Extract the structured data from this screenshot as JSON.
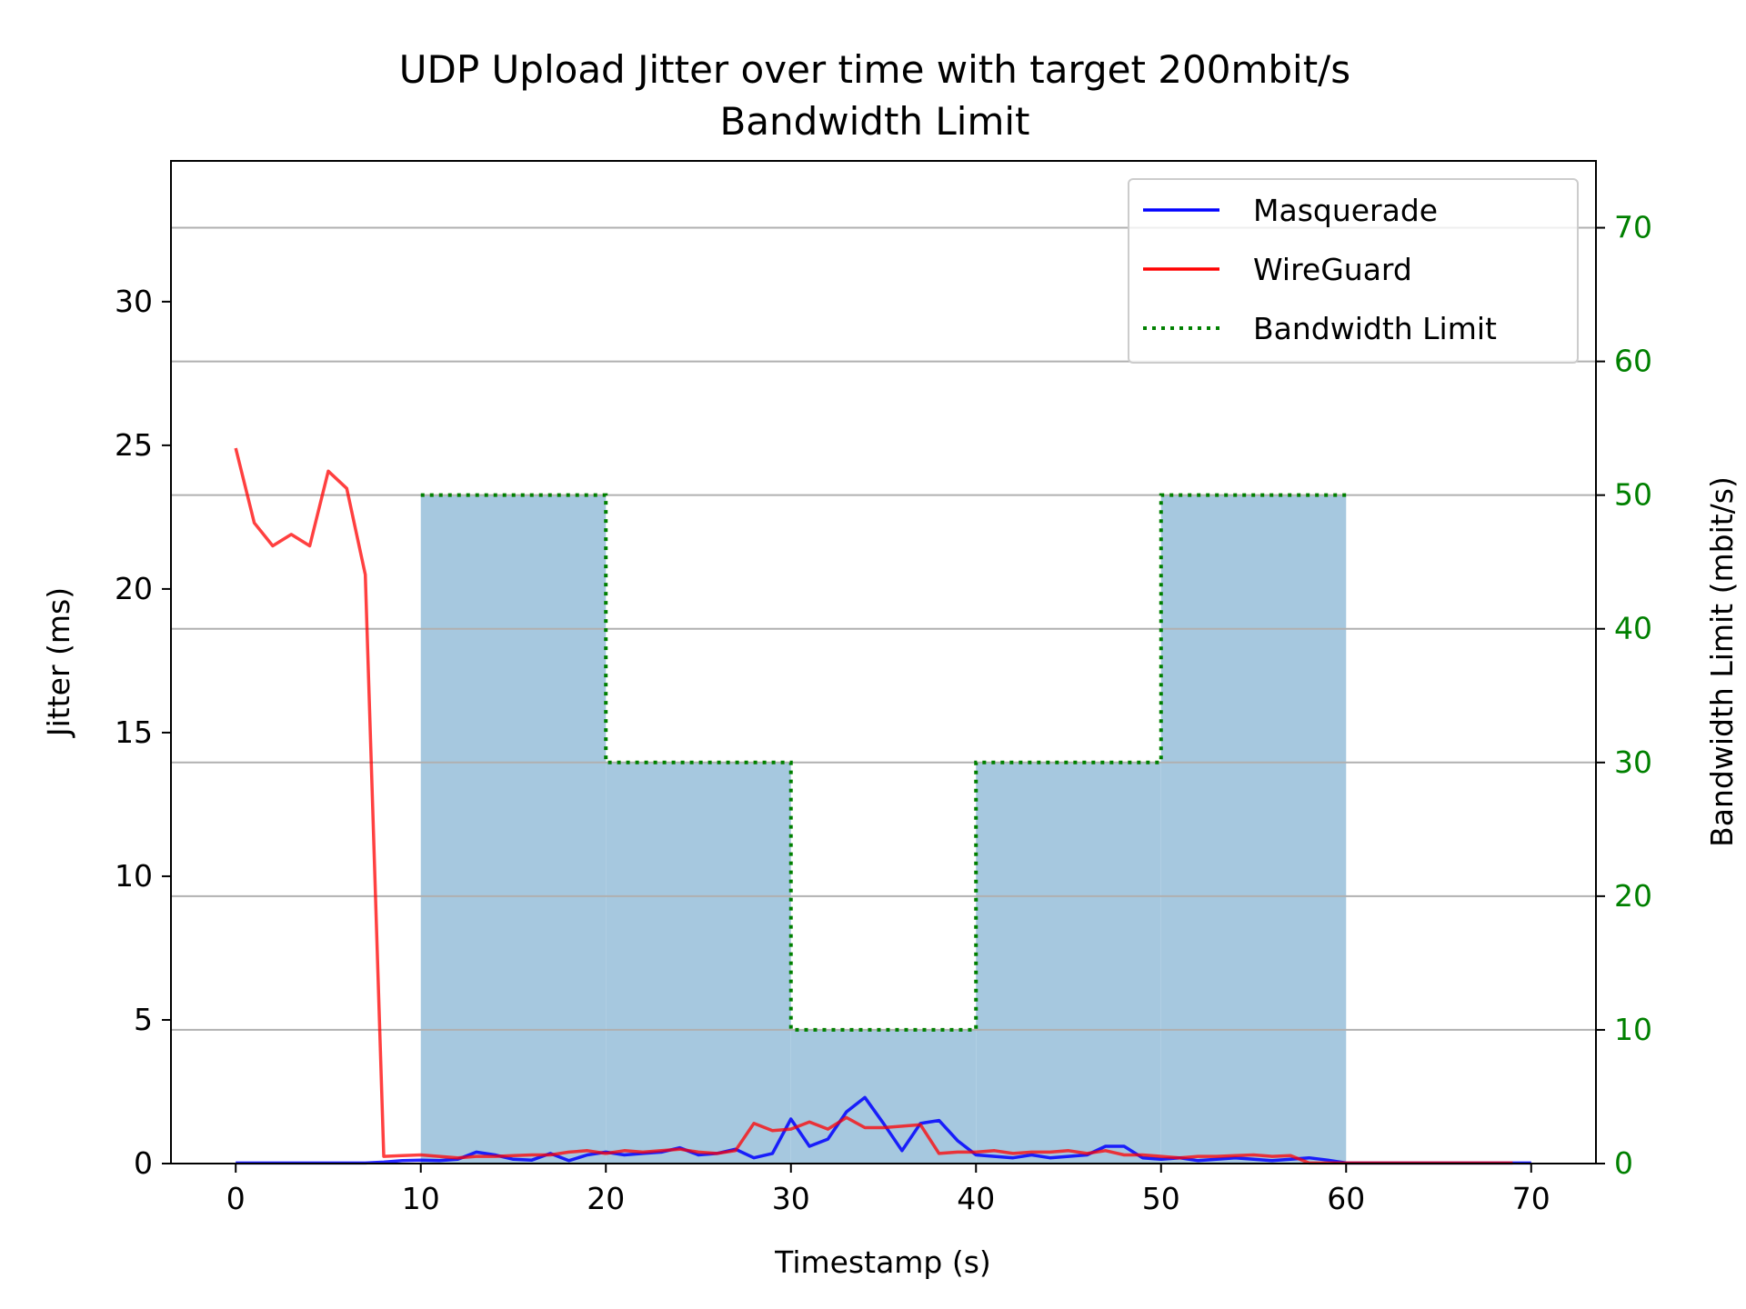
{
  "chart_data": {
    "type": "line",
    "title": "UDP Upload Jitter over time with target 200mbit/s\nBandwidth Limit",
    "title_lines": [
      "UDP Upload Jitter over time with target 200mbit/s",
      "Bandwidth Limit"
    ],
    "xlabel": "Timestamp (s)",
    "ylabel": "Jitter (ms)",
    "y2label": "Bandwidth Limit (mbit/s)",
    "y2_color": "#008000",
    "xlim": [
      -3.5,
      73.5
    ],
    "ylim": [
      0,
      34.9
    ],
    "y2lim": [
      0,
      75
    ],
    "x_ticks": [
      0,
      10,
      20,
      30,
      40,
      50,
      60,
      70
    ],
    "y_ticks": [
      0,
      5,
      10,
      15,
      20,
      25,
      30
    ],
    "y2_ticks": [
      0,
      10,
      20,
      30,
      40,
      50,
      60,
      70
    ],
    "grid": "horizontal lines on right axis",
    "legend_position": "upper right",
    "fill_color": "#a6c8df",
    "series": [
      {
        "name": "Masquerade",
        "color": "#0000ff",
        "axis": "left",
        "x": [
          0,
          1,
          2,
          3,
          4,
          5,
          6,
          7,
          8,
          9,
          10,
          11,
          12,
          13,
          14,
          15,
          16,
          17,
          18,
          19,
          20,
          21,
          22,
          23,
          24,
          25,
          26,
          27,
          28,
          29,
          30,
          31,
          32,
          33,
          34,
          35,
          36,
          37,
          38,
          39,
          40,
          41,
          42,
          43,
          44,
          45,
          46,
          47,
          48,
          49,
          50,
          51,
          52,
          53,
          54,
          55,
          56,
          57,
          58,
          59,
          60,
          61,
          62,
          63,
          64,
          65,
          66,
          67,
          68,
          69,
          70
        ],
        "values": [
          0.02,
          0.02,
          0.02,
          0.02,
          0.02,
          0.02,
          0.02,
          0.02,
          0.05,
          0.1,
          0.12,
          0.1,
          0.15,
          0.4,
          0.3,
          0.15,
          0.12,
          0.35,
          0.1,
          0.3,
          0.4,
          0.3,
          0.35,
          0.4,
          0.55,
          0.3,
          0.35,
          0.5,
          0.2,
          0.35,
          1.55,
          0.6,
          0.85,
          1.8,
          2.3,
          1.4,
          0.45,
          1.4,
          1.5,
          0.8,
          0.3,
          0.25,
          0.2,
          0.3,
          0.2,
          0.25,
          0.3,
          0.6,
          0.6,
          0.2,
          0.15,
          0.2,
          0.1,
          0.15,
          0.2,
          0.15,
          0.1,
          0.15,
          0.2,
          0.12,
          0.02,
          0.02,
          0.02,
          0.02,
          0.02,
          0.02,
          0.02,
          0.02,
          0.02,
          0.02,
          0.02
        ]
      },
      {
        "name": "WireGuard",
        "color": "#ff0000",
        "axis": "left",
        "x": [
          0,
          1,
          2,
          3,
          4,
          5,
          6,
          7,
          8,
          9,
          10,
          11,
          12,
          13,
          14,
          15,
          16,
          17,
          18,
          19,
          20,
          21,
          22,
          23,
          24,
          25,
          26,
          27,
          28,
          29,
          30,
          31,
          32,
          33,
          34,
          35,
          36,
          37,
          38,
          39,
          40,
          41,
          42,
          43,
          44,
          45,
          46,
          47,
          48,
          49,
          50,
          51,
          52,
          53,
          54,
          55,
          56,
          57,
          58,
          59,
          60,
          61,
          62,
          63,
          64,
          65,
          66,
          67,
          68,
          69
        ],
        "values": [
          24.9,
          22.3,
          21.5,
          21.9,
          21.5,
          24.1,
          23.5,
          20.5,
          0.25,
          0.28,
          0.3,
          0.25,
          0.2,
          0.25,
          0.25,
          0.28,
          0.3,
          0.3,
          0.4,
          0.45,
          0.35,
          0.45,
          0.4,
          0.45,
          0.5,
          0.4,
          0.35,
          0.45,
          1.4,
          1.15,
          1.2,
          1.45,
          1.2,
          1.6,
          1.25,
          1.25,
          1.3,
          1.35,
          0.35,
          0.4,
          0.4,
          0.45,
          0.35,
          0.4,
          0.4,
          0.45,
          0.35,
          0.45,
          0.3,
          0.3,
          0.25,
          0.2,
          0.25,
          0.25,
          0.28,
          0.3,
          0.25,
          0.28,
          0.02,
          0.02,
          0.02,
          0.02,
          0.02,
          0.02,
          0.02,
          0.02,
          0.02,
          0.02,
          0.02,
          0.02
        ]
      },
      {
        "name": "Bandwidth Limit",
        "color": "#008000",
        "style": "dotted",
        "axis": "right",
        "steps": [
          {
            "x0": 10,
            "x1": 20,
            "value": 50
          },
          {
            "x0": 20,
            "x1": 30,
            "value": 30
          },
          {
            "x0": 30,
            "x1": 40,
            "value": 10
          },
          {
            "x0": 40,
            "x1": 50,
            "value": 30
          },
          {
            "x0": 50,
            "x1": 60,
            "value": 50
          }
        ]
      }
    ]
  }
}
